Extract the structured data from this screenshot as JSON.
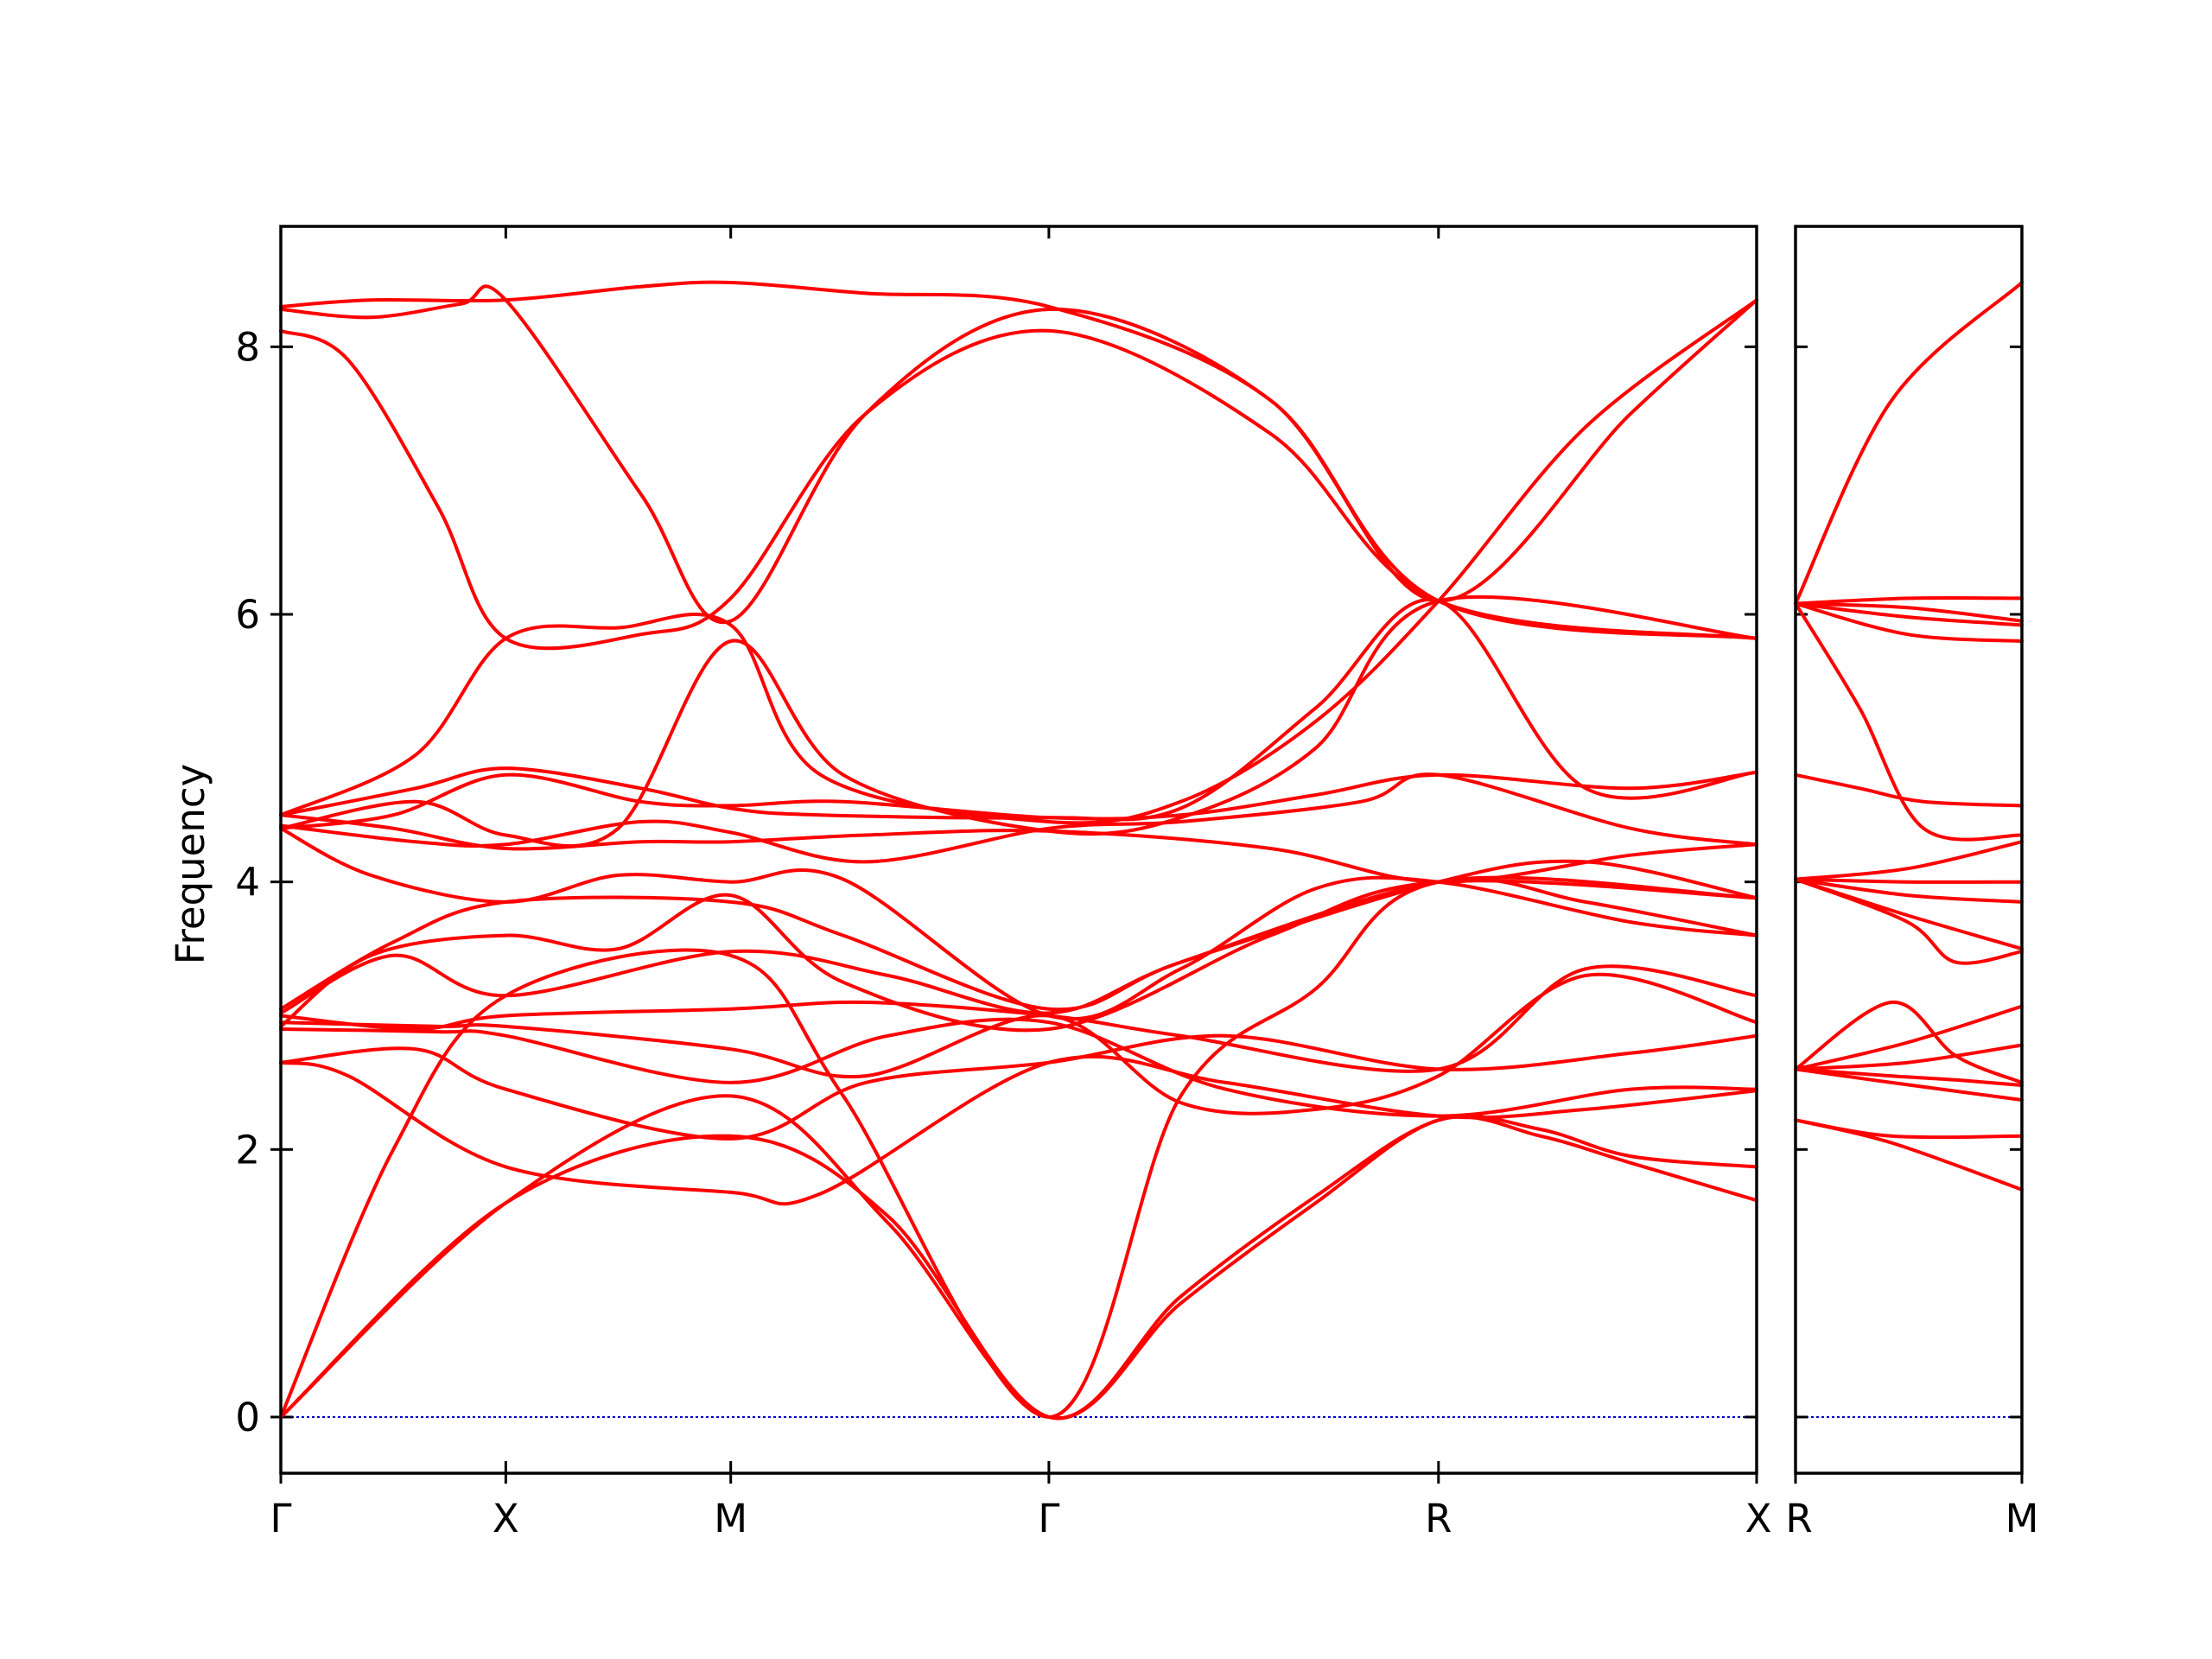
{
  "chart_data": {
    "type": "line",
    "title": "",
    "ylabel": "Frequency",
    "ylim": [
      -0.42,
      8.9
    ],
    "yticks": [
      0,
      2,
      4,
      6,
      8
    ],
    "grid": false,
    "legend": "none",
    "colors": {
      "bands": "#ff0000",
      "zero_line": "#0000cc",
      "frame": "#000000"
    },
    "panels": [
      {
        "name": "main-panel",
        "kpoints": [
          "Γ",
          "X",
          "M",
          "Γ",
          "R",
          "X"
        ],
        "kpositions": [
          0,
          0.5,
          1.0,
          1.7071,
          2.5731,
          3.2802
        ],
        "bands": [
          {
            "x": [
              0,
              0.5,
              1.0,
              1.35,
              1.7071,
              2.0,
              2.3,
              2.5731,
              2.8,
              3.0,
              3.2802
            ],
            "y": [
              0,
              1.6,
              2.1,
              1.5,
              0,
              0.9,
              1.65,
              2.22,
              2.15,
              1.95,
              1.87
            ]
          },
          {
            "x": [
              0,
              0.5,
              1.0,
              1.35,
              1.7071,
              2.0,
              2.3,
              2.5731,
              2.8,
              3.0,
              3.2802
            ],
            "y": [
              0,
              1.6,
              2.4,
              1.45,
              0,
              0.85,
              1.6,
              2.22,
              2.1,
              1.9,
              1.62
            ]
          },
          {
            "x": [
              0,
              0.25,
              0.5,
              1.0,
              1.25,
              1.7071,
              2.0,
              2.3,
              2.5731,
              3.2802
            ],
            "y": [
              0,
              2.0,
              3.15,
              3.45,
              2.4,
              0,
              2.4,
              3.2,
              4.0,
              3.88
            ]
          },
          {
            "x": [
              0,
              0.15,
              0.5,
              1.0,
              1.2,
              1.7071,
              2.1,
              2.5731,
              2.9,
              3.2802
            ],
            "y": [
              2.65,
              2.55,
              1.87,
              1.68,
              1.67,
              2.65,
              2.5,
              2.25,
              2.3,
              2.44
            ]
          },
          {
            "x": [
              0,
              0.3,
              0.5,
              1.0,
              1.3,
              1.7071,
              2.1,
              2.5731,
              3.0,
              3.2802
            ],
            "y": [
              2.65,
              2.75,
              2.45,
              2.08,
              2.5,
              2.65,
              2.85,
              2.6,
              2.72,
              2.85
            ]
          },
          {
            "x": [
              0,
              0.35,
              0.5,
              1.0,
              1.35,
              1.7071,
              2.1,
              2.5731,
              3.0,
              3.2802
            ],
            "y": [
              2.9,
              2.88,
              2.85,
              2.5,
              2.85,
              2.95,
              2.45,
              2.25,
              2.45,
              2.45
            ]
          },
          {
            "x": [
              0,
              0.35,
              0.5,
              1.0,
              1.3,
              1.7071,
              2.0,
              2.3,
              2.5731,
              2.9,
              3.2802
            ],
            "y": [
              2.95,
              2.92,
              2.92,
              2.75,
              2.55,
              3.0,
              2.35,
              2.3,
              2.55,
              3.3,
              2.95
            ]
          },
          {
            "x": [
              0,
              0.3,
              0.5,
              1.0,
              1.3,
              1.7071,
              2.0,
              2.5731,
              2.9,
              3.2802
            ],
            "y": [
              3.0,
              2.9,
              3.0,
              3.05,
              3.1,
              3.0,
              2.85,
              2.6,
              3.35,
              3.15
            ]
          },
          {
            "x": [
              0,
              0.25,
              0.5,
              1.0,
              1.35,
              1.7071,
              2.0,
              2.5731,
              2.9,
              3.2802
            ],
            "y": [
              3.02,
              3.45,
              3.15,
              3.48,
              3.3,
              3.02,
              3.4,
              4.0,
              3.85,
              3.6
            ]
          },
          {
            "x": [
              0,
              0.25,
              0.5,
              1.0,
              1.25,
              1.7071,
              2.0,
              2.5731,
              2.9,
              3.2802
            ],
            "y": [
              3.05,
              3.55,
              3.85,
              3.85,
              3.6,
              3.05,
              3.4,
              4.0,
              4.15,
              3.88
            ]
          },
          {
            "x": [
              0,
              0.2,
              0.5,
              0.75,
              1.0,
              1.25,
              1.7071,
              2.2,
              2.5731,
              3.2802
            ],
            "y": [
              2.92,
              3.45,
              3.6,
              3.5,
              3.9,
              3.25,
              2.9,
              3.6,
              4.0,
              3.88
            ]
          },
          {
            "x": [
              0,
              0.2,
              0.5,
              0.75,
              1.0,
              1.25,
              1.7071,
              2.0,
              2.3,
              2.5731,
              3.0,
              3.2802
            ],
            "y": [
              4.4,
              4.05,
              3.85,
              4.05,
              4.0,
              4.02,
              3.0,
              3.35,
              3.95,
              4.0,
              3.7,
              3.6
            ]
          },
          {
            "x": [
              0,
              0.25,
              0.5,
              0.8,
              1.0,
              1.3,
              1.7071,
              2.2,
              2.5731,
              3.0,
              3.2802
            ],
            "y": [
              4.5,
              4.4,
              4.25,
              4.3,
              4.3,
              4.35,
              4.38,
              4.25,
              4.0,
              4.2,
              4.28
            ]
          },
          {
            "x": [
              0,
              0.3,
              0.5,
              0.8,
              1.0,
              1.3,
              1.7071,
              2.0,
              2.4,
              2.5731,
              3.0,
              3.2802
            ],
            "y": [
              4.42,
              4.3,
              4.28,
              4.45,
              4.37,
              4.15,
              4.4,
              4.45,
              4.6,
              4.8,
              4.4,
              4.28
            ]
          },
          {
            "x": [
              0,
              0.25,
              0.5,
              0.8,
              1.0,
              1.25,
              1.7071,
              2.0,
              2.3,
              2.5731,
              3.0,
              3.2802
            ],
            "y": [
              4.4,
              4.5,
              4.8,
              4.6,
              4.57,
              4.6,
              4.48,
              4.5,
              4.65,
              4.8,
              4.7,
              4.82
            ]
          },
          {
            "x": [
              0,
              0.3,
              0.5,
              0.8,
              1.0,
              1.2,
              1.7071,
              2.0,
              2.3,
              2.5731,
              2.9,
              3.2802
            ],
            "y": [
              4.5,
              4.7,
              4.85,
              4.7,
              4.55,
              4.5,
              4.48,
              4.55,
              5.3,
              6.1,
              4.7,
              4.82
            ]
          },
          {
            "x": [
              0,
              0.3,
              0.5,
              0.75,
              1.0,
              1.2,
              1.7071,
              2.0,
              2.3,
              2.5731,
              2.9,
              3.2802
            ],
            "y": [
              4.5,
              4.95,
              5.82,
              5.9,
              5.92,
              4.8,
              4.45,
              4.6,
              5.2,
              6.1,
              7.4,
              8.35
            ]
          },
          {
            "x": [
              0,
              0.3,
              0.5,
              0.75,
              1.0,
              1.25,
              1.7071,
              2.0,
              2.3,
              2.5731,
              3.2802
            ],
            "y": [
              4.4,
              4.6,
              4.35,
              4.4,
              5.8,
              4.8,
              4.38,
              4.48,
              5.0,
              6.1,
              5.82
            ]
          },
          {
            "x": [
              0,
              0.15,
              0.35,
              0.5,
              0.8,
              1.0,
              1.3,
              1.7071,
              2.2,
              2.5731,
              3.2802
            ],
            "y": [
              8.12,
              7.9,
              6.8,
              5.82,
              5.85,
              6.12,
              7.5,
              8.12,
              7.35,
              6.1,
              5.82
            ]
          },
          {
            "x": [
              0,
              0.2,
              0.4,
              0.5,
              0.8,
              1.0,
              1.3,
              1.7071,
              2.2,
              2.5731,
              3.2802
            ],
            "y": [
              8.28,
              8.22,
              8.32,
              8.35,
              6.9,
              5.95,
              7.5,
              8.28,
              7.6,
              6.1,
              5.82
            ]
          },
          {
            "x": [
              0,
              0.2,
              0.5,
              0.8,
              1.0,
              1.3,
              1.7071,
              2.2,
              2.5731,
              3.0,
              3.2802
            ],
            "y": [
              8.3,
              8.35,
              8.35,
              8.45,
              8.48,
              8.4,
              8.3,
              7.6,
              6.1,
              7.5,
              8.35
            ]
          }
        ]
      },
      {
        "name": "side-panel",
        "kpoints": [
          "R",
          "M"
        ],
        "kpositions": [
          0,
          0.7071
        ],
        "bands": [
          {
            "x": [
              0,
              0.3,
              0.7071
            ],
            "y": [
              2.22,
              2.05,
              1.7
            ]
          },
          {
            "x": [
              0,
              0.3,
              0.7071
            ],
            "y": [
              2.22,
              2.1,
              2.1
            ]
          },
          {
            "x": [
              0,
              0.3,
              0.7071
            ],
            "y": [
              2.6,
              2.5,
              2.37
            ]
          },
          {
            "x": [
              0,
              0.3,
              0.5,
              0.7071
            ],
            "y": [
              2.6,
              2.55,
              2.52,
              2.48
            ]
          },
          {
            "x": [
              0,
              0.3,
              0.5,
              0.7071
            ],
            "y": [
              2.6,
              3.1,
              2.7,
              2.5
            ]
          },
          {
            "x": [
              0,
              0.35,
              0.7071
            ],
            "y": [
              2.6,
              2.65,
              2.78
            ]
          },
          {
            "x": [
              0,
              0.35,
              0.7071
            ],
            "y": [
              2.6,
              2.8,
              3.07
            ]
          },
          {
            "x": [
              0,
              0.35,
              0.5,
              0.7071
            ],
            "y": [
              4.02,
              3.7,
              3.4,
              3.48
            ]
          },
          {
            "x": [
              0,
              0.35,
              0.7071
            ],
            "y": [
              4.02,
              3.75,
              3.5
            ]
          },
          {
            "x": [
              0,
              0.35,
              0.7071
            ],
            "y": [
              4.02,
              3.9,
              3.85
            ]
          },
          {
            "x": [
              0,
              0.35,
              0.7071
            ],
            "y": [
              4.02,
              4.0,
              4.0
            ]
          },
          {
            "x": [
              0,
              0.35,
              0.7071
            ],
            "y": [
              4.02,
              4.1,
              4.3
            ]
          },
          {
            "x": [
              0,
              0.2,
              0.4,
              0.7071
            ],
            "y": [
              4.8,
              4.7,
              4.6,
              4.57
            ]
          },
          {
            "x": [
              0,
              0.2,
              0.4,
              0.7071
            ],
            "y": [
              6.08,
              5.3,
              4.4,
              4.35
            ]
          },
          {
            "x": [
              0,
              0.35,
              0.7071
            ],
            "y": [
              6.08,
              5.85,
              5.8
            ]
          },
          {
            "x": [
              0,
              0.35,
              0.7071
            ],
            "y": [
              6.08,
              5.98,
              5.92
            ]
          },
          {
            "x": [
              0,
              0.35,
              0.7071
            ],
            "y": [
              6.08,
              6.05,
              5.95
            ]
          },
          {
            "x": [
              0,
              0.35,
              0.7071
            ],
            "y": [
              6.08,
              6.12,
              6.12
            ]
          },
          {
            "x": [
              0,
              0.3,
              0.7071
            ],
            "y": [
              6.08,
              7.6,
              8.48
            ]
          }
        ]
      }
    ]
  }
}
